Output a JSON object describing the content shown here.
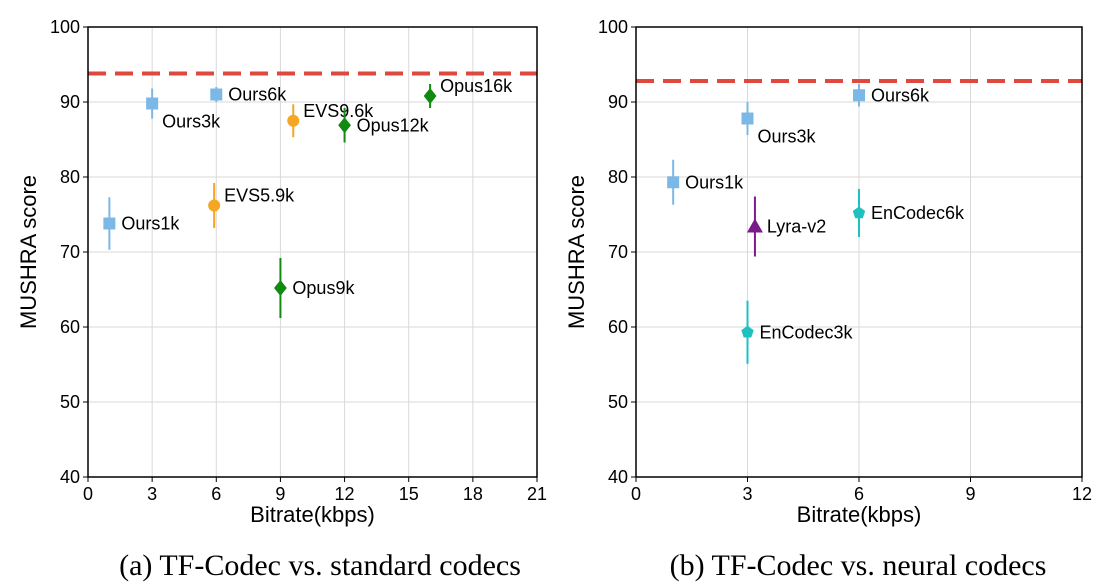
{
  "chart_data": [
    {
      "type": "scatter",
      "panel": "a",
      "caption": "(a) TF-Codec vs. standard codecs",
      "xlabel": "Bitrate(kbps)",
      "ylabel": "MUSHRA score",
      "xlim": [
        0,
        21
      ],
      "ylim": [
        40,
        100
      ],
      "xticks": [
        0,
        3,
        6,
        9,
        12,
        15,
        18,
        21
      ],
      "yticks": [
        40,
        50,
        60,
        70,
        80,
        90,
        100
      ],
      "grid": true,
      "reference_line": {
        "y": 93.8,
        "color": "#e0473d",
        "style": "dashed"
      },
      "points": [
        {
          "label": "Ours1k",
          "x": 1,
          "y": 73.8,
          "err": 3.5,
          "marker": "square",
          "color": "#7cb8e6",
          "label_pos": "right"
        },
        {
          "label": "Ours3k",
          "x": 3,
          "y": 89.8,
          "err": 2.0,
          "marker": "square",
          "color": "#7cb8e6",
          "label_pos": "below-right"
        },
        {
          "label": "Ours6k",
          "x": 6,
          "y": 91.0,
          "err": 1.0,
          "marker": "square",
          "color": "#7cb8e6",
          "label_pos": "right"
        },
        {
          "label": "EVS5.9k",
          "x": 5.9,
          "y": 76.2,
          "err": 3.0,
          "marker": "circle",
          "color": "#f5a623",
          "label_pos": "above-right"
        },
        {
          "label": "EVS9.6k",
          "x": 9.6,
          "y": 87.5,
          "err": 2.2,
          "marker": "circle",
          "color": "#f5a623",
          "label_pos": "above-right"
        },
        {
          "label": "Opus9k",
          "x": 9,
          "y": 65.2,
          "err": 4.0,
          "marker": "diamond",
          "color": "#118a11",
          "label_pos": "right"
        },
        {
          "label": "Opus12k",
          "x": 12,
          "y": 86.9,
          "err": 2.3,
          "marker": "diamond",
          "color": "#118a11",
          "label_pos": "right"
        },
        {
          "label": "Opus16k",
          "x": 16,
          "y": 90.8,
          "err": 1.6,
          "marker": "diamond",
          "color": "#118a11",
          "label_pos": "above-right"
        }
      ]
    },
    {
      "type": "scatter",
      "panel": "b",
      "caption": "(b) TF-Codec vs. neural codecs",
      "xlabel": "Bitrate(kbps)",
      "ylabel": "MUSHRA score",
      "xlim": [
        0,
        12
      ],
      "ylim": [
        40,
        100
      ],
      "xticks": [
        0,
        3,
        6,
        9,
        12
      ],
      "yticks": [
        40,
        50,
        60,
        70,
        80,
        90,
        100
      ],
      "grid": true,
      "reference_line": {
        "y": 92.8,
        "color": "#e0473d",
        "style": "dashed"
      },
      "points": [
        {
          "label": "Ours1k",
          "x": 1,
          "y": 79.3,
          "err": 3.0,
          "marker": "square",
          "color": "#7cb8e6",
          "label_pos": "right"
        },
        {
          "label": "Ours3k",
          "x": 3,
          "y": 87.8,
          "err": 2.2,
          "marker": "square",
          "color": "#7cb8e6",
          "label_pos": "below-right"
        },
        {
          "label": "Ours6k",
          "x": 6,
          "y": 90.9,
          "err": 1.5,
          "marker": "square",
          "color": "#7cb8e6",
          "label_pos": "right"
        },
        {
          "label": "Lyra-v2",
          "x": 3.2,
          "y": 73.4,
          "err": 4.0,
          "marker": "triangle",
          "color": "#7b1a8c",
          "label_pos": "right"
        },
        {
          "label": "EnCodec3k",
          "x": 3,
          "y": 59.3,
          "err": 4.2,
          "marker": "pentagon",
          "color": "#1fc0c0",
          "label_pos": "right"
        },
        {
          "label": "EnCodec6k",
          "x": 6,
          "y": 75.2,
          "err": 3.2,
          "marker": "pentagon",
          "color": "#1fc0c0",
          "label_pos": "right"
        }
      ]
    }
  ]
}
